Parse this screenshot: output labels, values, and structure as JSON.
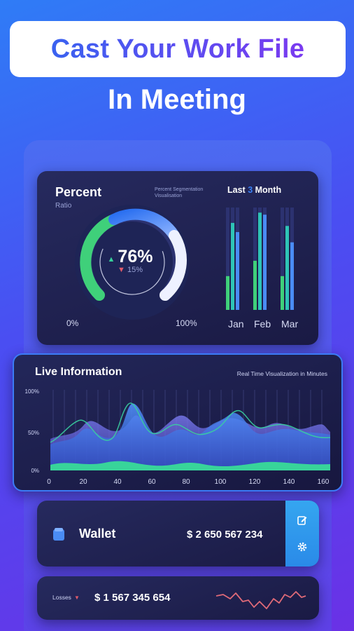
{
  "headline": "Cast Your Work File",
  "subheadline": "In Meeting",
  "percent_card": {
    "title": "Percent",
    "subtitle": "Ratio",
    "note": "Percent Segmentation Visualisation",
    "value": "76%",
    "change": "15%",
    "min_label": "0%",
    "max_label": "100%",
    "gauge_fraction": 0.76,
    "last_prefix": "Last",
    "last_number": "3",
    "last_suffix": "Month",
    "months": [
      "Jan",
      "Feb",
      "Mar"
    ],
    "bar_levels": [
      {
        "teal": 0.85,
        "green": 0.33,
        "blue": 0.76
      },
      {
        "teal": 0.95,
        "green": 0.48,
        "blue": 0.93
      },
      {
        "teal": 0.82,
        "green": 0.33,
        "blue": 0.66
      }
    ],
    "colors": {
      "teal": "#2ec4b6",
      "green": "#3fd07a",
      "blue": "#4a8cf5",
      "track": "#2c3270"
    }
  },
  "live": {
    "title": "Live Information",
    "note": "Real Time Visualization in Minutes",
    "y_ticks": [
      "100%",
      "50%",
      "0%"
    ],
    "x_ticks": [
      "0",
      "20",
      "40",
      "60",
      "80",
      "100",
      "120",
      "140",
      "160"
    ]
  },
  "wallet": {
    "label": "Wallet",
    "amount": "$ 2 650 567 234",
    "icons": [
      "edit-icon",
      "gear-icon"
    ]
  },
  "losses": {
    "label": "Losses",
    "amount": "$ 1 567 345 654"
  },
  "colors": {
    "accent": "#3b82f6",
    "positive": "#37d19a",
    "negative": "#e05a6a"
  }
}
